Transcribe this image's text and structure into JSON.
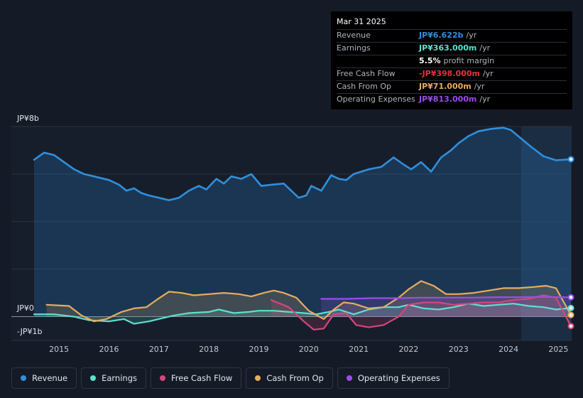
{
  "chart_data": {
    "type": "area",
    "currency_note": "JP¥",
    "y_axis": {
      "top_label": "JP¥8b",
      "zero_label": "JP¥0",
      "bottom_label": "-JP¥1b",
      "ylim": [
        -1.0,
        8.0
      ]
    },
    "x_axis": {
      "ticks": [
        "2015",
        "2016",
        "2017",
        "2018",
        "2019",
        "2020",
        "2021",
        "2022",
        "2023",
        "2024",
        "2025"
      ],
      "xlim": [
        2014.5,
        2025.25
      ]
    },
    "series": [
      {
        "name": "Revenue",
        "color": "#2f8fdd",
        "x": [
          2014.5,
          2014.7,
          2014.9,
          2015.1,
          2015.3,
          2015.5,
          2015.7,
          2016.0,
          2016.2,
          2016.35,
          2016.5,
          2016.65,
          2016.8,
          2017.0,
          2017.2,
          2017.4,
          2017.6,
          2017.8,
          2017.95,
          2018.15,
          2018.3,
          2018.45,
          2018.65,
          2018.85,
          2019.05,
          2019.25,
          2019.5,
          2019.8,
          2019.95,
          2020.05,
          2020.25,
          2020.45,
          2020.6,
          2020.75,
          2020.9,
          2021.2,
          2021.45,
          2021.7,
          2021.9,
          2022.05,
          2022.25,
          2022.45,
          2022.65,
          2022.85,
          2023.0,
          2023.2,
          2023.4,
          2023.65,
          2023.9,
          2024.05,
          2024.25,
          2024.45,
          2024.7,
          2024.95,
          2025.1,
          2025.25
        ],
        "values": [
          6.6,
          6.9,
          6.8,
          6.5,
          6.2,
          6.0,
          5.9,
          5.75,
          5.55,
          5.3,
          5.4,
          5.2,
          5.1,
          5.0,
          4.9,
          5.0,
          5.3,
          5.5,
          5.35,
          5.8,
          5.6,
          5.9,
          5.8,
          6.0,
          5.5,
          5.55,
          5.6,
          5.0,
          5.1,
          5.5,
          5.3,
          5.95,
          5.8,
          5.75,
          6.0,
          6.2,
          6.3,
          6.7,
          6.4,
          6.2,
          6.5,
          6.1,
          6.7,
          7.0,
          7.3,
          7.6,
          7.8,
          7.9,
          7.95,
          7.85,
          7.5,
          7.15,
          6.75,
          6.58,
          6.6,
          6.622
        ]
      },
      {
        "name": "Earnings",
        "color": "#5de0cf",
        "x": [
          2014.5,
          2014.9,
          2015.3,
          2015.6,
          2016.0,
          2016.3,
          2016.5,
          2016.8,
          2017.1,
          2017.3,
          2017.6,
          2018.0,
          2018.2,
          2018.5,
          2018.8,
          2019.0,
          2019.3,
          2019.6,
          2019.9,
          2020.15,
          2020.4,
          2020.6,
          2020.9,
          2021.2,
          2021.5,
          2021.8,
          2022.0,
          2022.3,
          2022.6,
          2022.9,
          2023.2,
          2023.5,
          2023.8,
          2024.1,
          2024.4,
          2024.7,
          2024.95,
          2025.25
        ],
        "values": [
          0.1,
          0.1,
          0.0,
          -0.15,
          -0.2,
          -0.1,
          -0.3,
          -0.2,
          -0.05,
          0.05,
          0.15,
          0.2,
          0.3,
          0.15,
          0.2,
          0.25,
          0.25,
          0.2,
          0.15,
          0.1,
          0.2,
          0.3,
          0.1,
          0.3,
          0.4,
          0.4,
          0.5,
          0.35,
          0.3,
          0.4,
          0.55,
          0.45,
          0.5,
          0.55,
          0.45,
          0.4,
          0.3,
          0.363
        ]
      },
      {
        "name": "Free Cash Flow",
        "color": "#d6467b",
        "x": [
          2019.25,
          2019.6,
          2019.9,
          2020.1,
          2020.3,
          2020.5,
          2020.75,
          2020.95,
          2021.2,
          2021.5,
          2021.8,
          2022.0,
          2022.3,
          2022.6,
          2022.9,
          2023.2,
          2023.5,
          2023.8,
          2024.1,
          2024.4,
          2024.7,
          2024.95,
          2025.25
        ],
        "values": [
          0.7,
          0.4,
          -0.2,
          -0.55,
          -0.5,
          0.1,
          0.15,
          -0.35,
          -0.45,
          -0.35,
          0.0,
          0.5,
          0.6,
          0.6,
          0.5,
          0.55,
          0.6,
          0.6,
          0.7,
          0.75,
          0.9,
          0.8,
          -0.398
        ]
      },
      {
        "name": "Cash From Op",
        "color": "#e8ad5e",
        "x": [
          2014.75,
          2015.2,
          2015.45,
          2015.7,
          2015.95,
          2016.25,
          2016.5,
          2016.75,
          2016.95,
          2017.2,
          2017.45,
          2017.7,
          2018.0,
          2018.3,
          2018.6,
          2018.85,
          2019.1,
          2019.3,
          2019.5,
          2019.75,
          2020.0,
          2020.3,
          2020.5,
          2020.7,
          2020.9,
          2021.2,
          2021.5,
          2021.8,
          2022.0,
          2022.25,
          2022.5,
          2022.75,
          2023.0,
          2023.3,
          2023.6,
          2023.9,
          2024.2,
          2024.5,
          2024.75,
          2024.95,
          2025.25
        ],
        "values": [
          0.5,
          0.45,
          0.05,
          -0.2,
          -0.1,
          0.2,
          0.35,
          0.4,
          0.7,
          1.05,
          1.0,
          0.9,
          0.95,
          1.0,
          0.95,
          0.85,
          1.0,
          1.1,
          1.0,
          0.8,
          0.25,
          -0.1,
          0.3,
          0.6,
          0.55,
          0.35,
          0.4,
          0.8,
          1.15,
          1.5,
          1.3,
          0.95,
          0.95,
          1.0,
          1.1,
          1.2,
          1.2,
          1.25,
          1.3,
          1.2,
          0.071
        ]
      },
      {
        "name": "Operating Expenses",
        "color": "#9b4dec",
        "x": [
          2020.25,
          2020.75,
          2021.25,
          2021.75,
          2022.25,
          2022.75,
          2023.25,
          2023.75,
          2024.25,
          2024.75,
          2025.25
        ],
        "values": [
          0.75,
          0.75,
          0.78,
          0.78,
          0.8,
          0.8,
          0.8,
          0.82,
          0.82,
          0.83,
          0.813
        ]
      }
    ]
  },
  "tooltip": {
    "date": "Mar 31 2025",
    "rows": [
      {
        "label": "Revenue",
        "value": "JP¥6.622b",
        "unit": "/yr",
        "color": "#2f8fdd"
      },
      {
        "label": "Earnings",
        "value": "JP¥363.000m",
        "unit": "/yr",
        "color": "#5de0cf"
      },
      {
        "label": "",
        "value": "5.5%",
        "unit": "profit margin",
        "color": "#ffffff"
      },
      {
        "label": "Free Cash Flow",
        "value": "-JP¥398.000m",
        "unit": "/yr",
        "color": "#e0343e"
      },
      {
        "label": "Cash From Op",
        "value": "JP¥71.000m",
        "unit": "/yr",
        "color": "#e8ad5e"
      },
      {
        "label": "Operating Expenses",
        "value": "JP¥813.000m",
        "unit": "/yr",
        "color": "#9b4dec"
      }
    ]
  },
  "legend": [
    {
      "label": "Revenue",
      "color": "#2f8fdd"
    },
    {
      "label": "Earnings",
      "color": "#5de0cf"
    },
    {
      "label": "Free Cash Flow",
      "color": "#d6467b"
    },
    {
      "label": "Cash From Op",
      "color": "#e8ad5e"
    },
    {
      "label": "Operating Expenses",
      "color": "#9b4dec"
    }
  ]
}
